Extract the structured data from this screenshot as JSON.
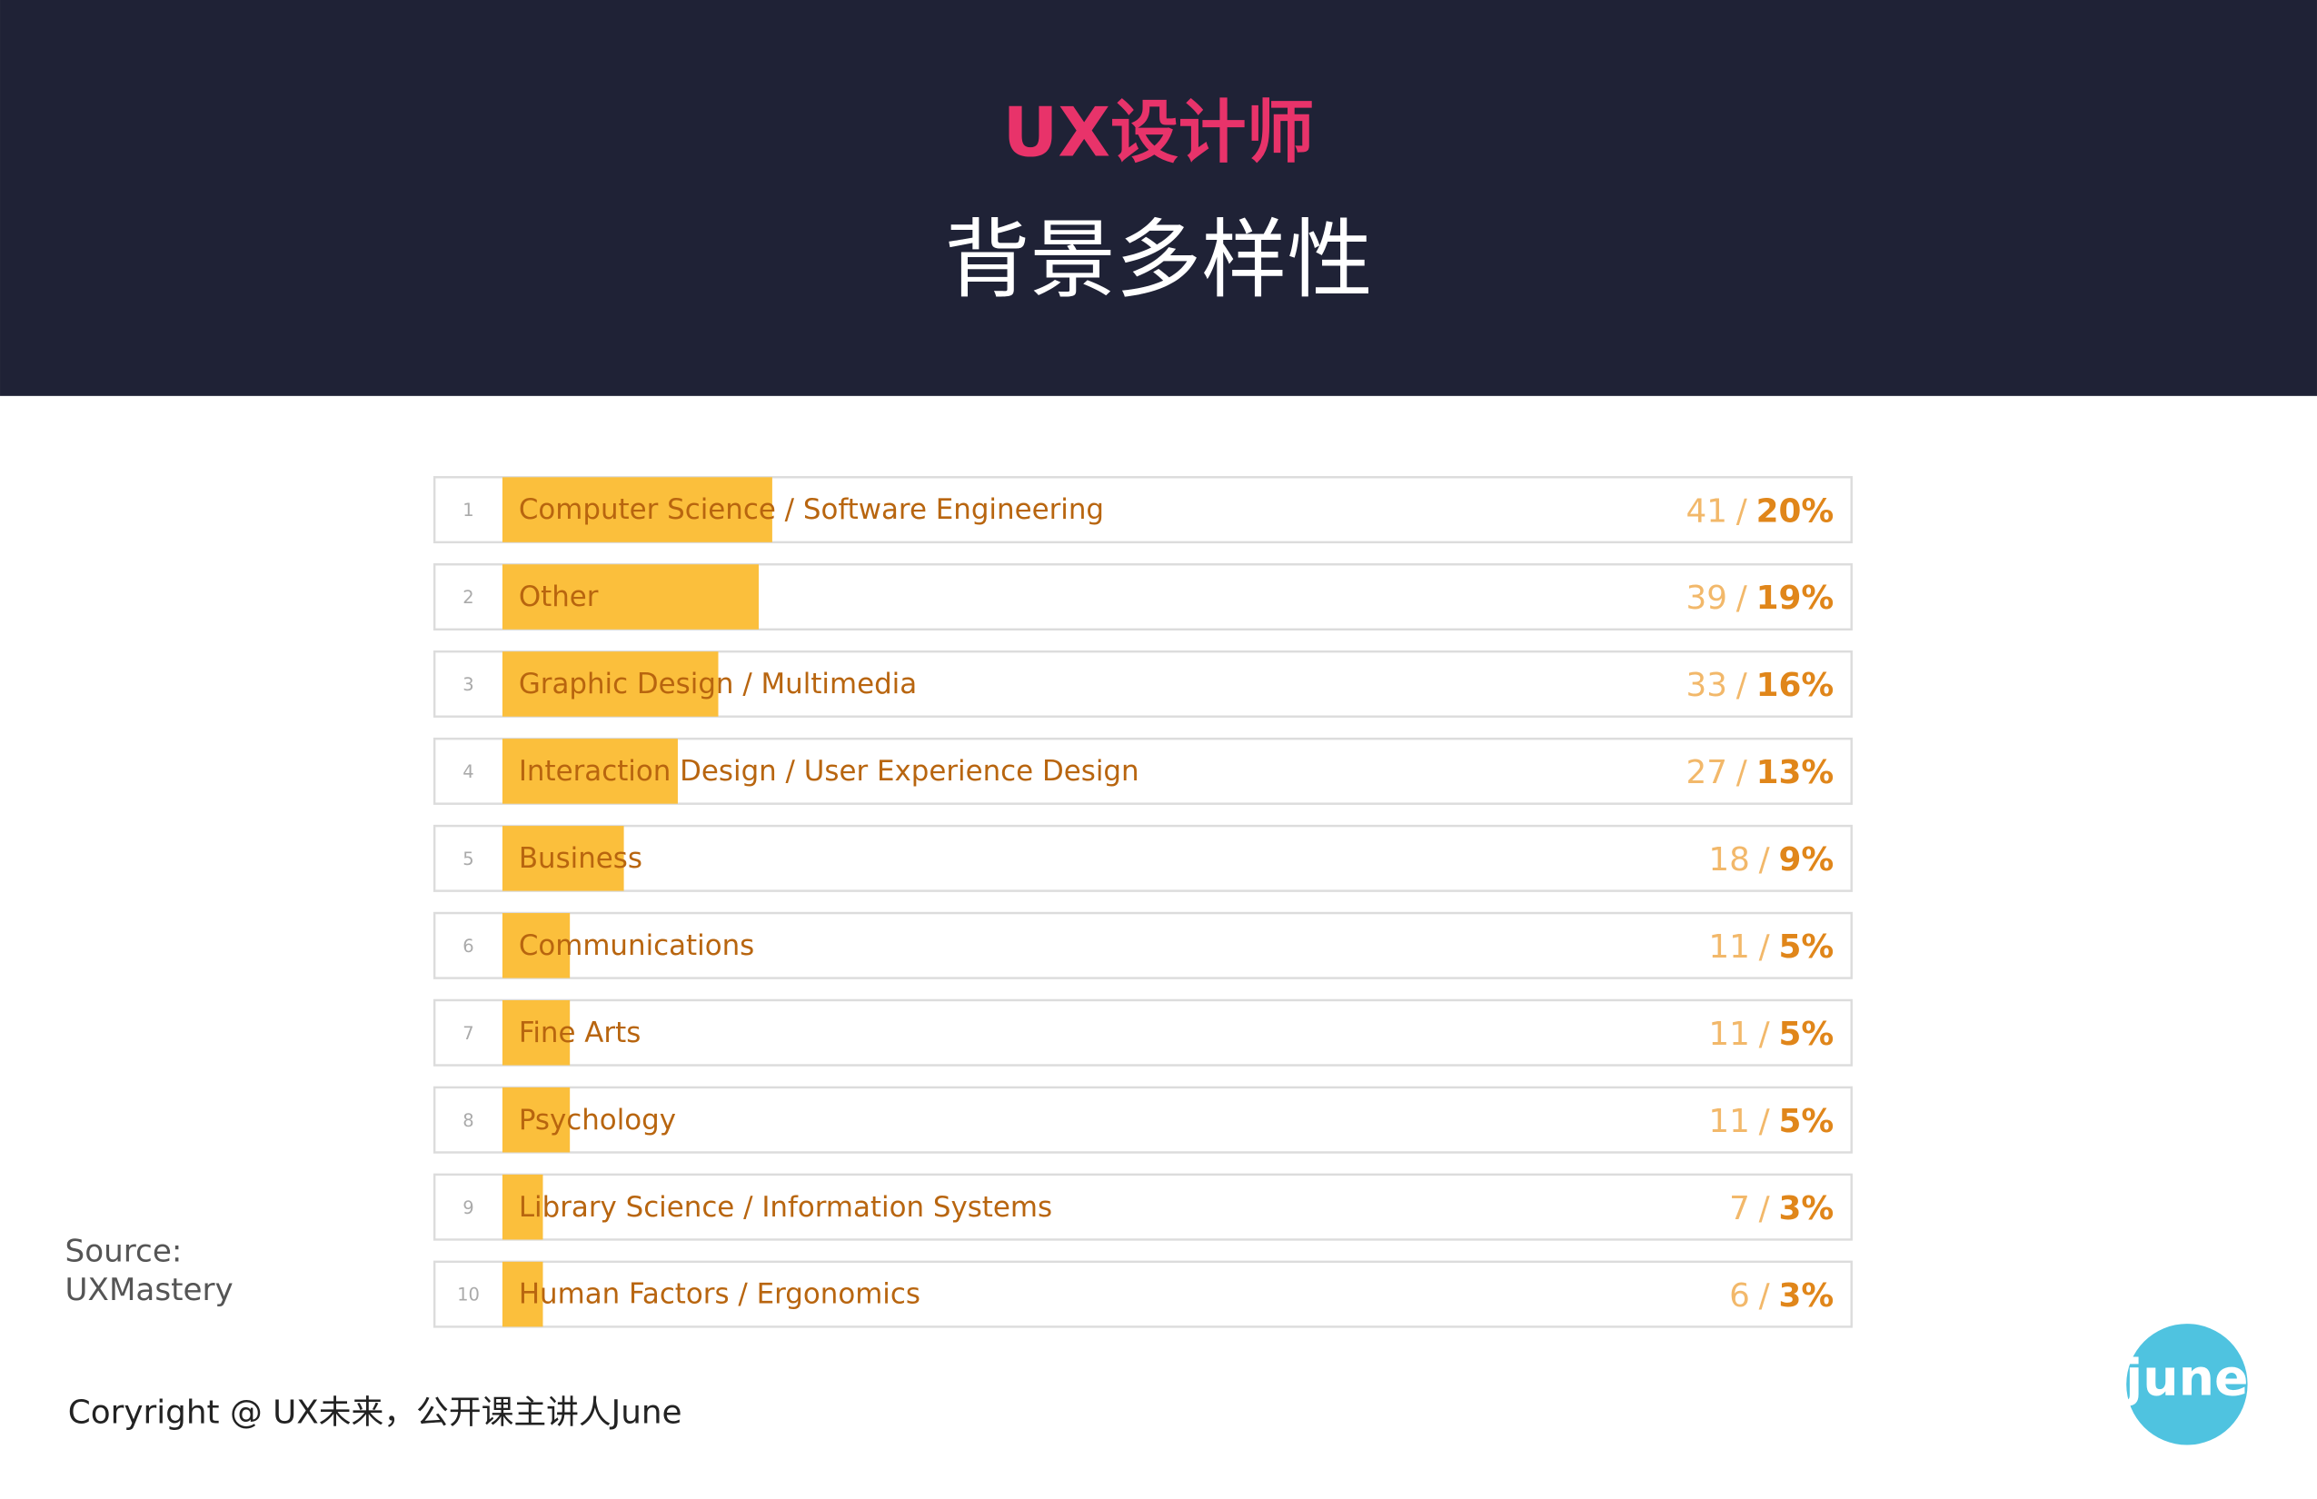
{
  "title": "UX设计师",
  "subtitle": "背景多样性",
  "chart_data": {
    "type": "bar",
    "orientation": "horizontal",
    "ranks": [
      1,
      2,
      3,
      4,
      5,
      6,
      7,
      8,
      9,
      10
    ],
    "categories": [
      "Computer Science / Software Engineering",
      "Other",
      "Graphic Design / Multimedia",
      "Interaction Design / User Experience Design",
      "Business",
      "Communications",
      "Fine Arts",
      "Psychology",
      "Library Science / Information Systems",
      "Human Factors / Ergonomics"
    ],
    "counts": [
      41,
      39,
      33,
      27,
      18,
      11,
      11,
      11,
      7,
      6
    ],
    "values": [
      20,
      19,
      16,
      13,
      9,
      5,
      5,
      5,
      3,
      3
    ],
    "value_labels": [
      "20%",
      "19%",
      "16%",
      "13%",
      "9%",
      "5%",
      "5%",
      "5%",
      "3%",
      "3%"
    ],
    "separator": "/",
    "color": "#fbbf3c",
    "xlim": [
      0,
      100
    ]
  },
  "source": [
    "Source:",
    "UXMastery"
  ],
  "copyright": "Coryright @ UX未来，公开课主讲人June",
  "logo": "june"
}
